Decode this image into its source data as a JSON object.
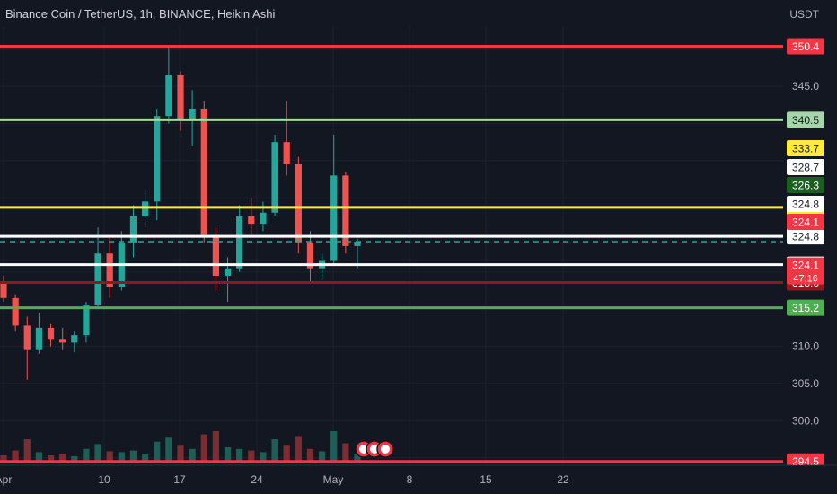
{
  "title": "Binance Coin / TetherUS, 1h, BINANCE, Heikin Ashi",
  "currency_label": "USDT",
  "colors": {
    "background": "#131722",
    "grid": "#1e222d",
    "text": "#b2b5be",
    "up": "#26a69a",
    "down": "#ef5350",
    "volume_up": "#1f5e57",
    "volume_down": "#7a2e31"
  },
  "chart_data": {
    "type": "candlestick",
    "ylim": [
      293.5,
      353.0
    ],
    "y_ticks": [
      {
        "value": 345.0,
        "label": "345.0"
      },
      {
        "value": 310.0,
        "label": "310.0"
      },
      {
        "value": 305.0,
        "label": "305.0"
      },
      {
        "value": 300.0,
        "label": "300.0"
      }
    ],
    "x_ticks": [
      "Apr",
      "10",
      "17",
      "24",
      "May",
      "8",
      "15",
      "22"
    ],
    "horizontal_lines": [
      {
        "value": 350.4,
        "color": "#f23645",
        "label": "350.4",
        "text_color": "#ffffff"
      },
      {
        "value": 340.5,
        "color": "#a5d6a7",
        "label": "340.5",
        "text_color": "#131722"
      },
      {
        "value": 328.7,
        "color": "#ffeb3b",
        "label": "328.7",
        "text_color": "#131722"
      },
      {
        "value": 324.8,
        "color": "#ffffff",
        "label": "324.8",
        "text_color": "#131722"
      },
      {
        "value": 321.0,
        "color": "#ffffff",
        "label": "324.1",
        "text_color": "#ffffff"
      },
      {
        "value": 318.6,
        "color": "#8b1a1f",
        "label": "318.6",
        "text_color": "#ffffff"
      },
      {
        "value": 315.2,
        "color": "#4caf50",
        "label": "315.2",
        "text_color": "#ffffff"
      },
      {
        "value": 294.5,
        "color": "#f23645",
        "label": "294.5",
        "text_color": "#ffffff"
      }
    ],
    "price_badges": [
      {
        "value": 333.7,
        "label": "333.7",
        "bg": "#ffeb3b",
        "fg": "#131722"
      },
      {
        "value": 328.7,
        "label": "328.7",
        "bg": "#ffffff",
        "fg": "#131722"
      },
      {
        "value": 326.3,
        "label": "326.3",
        "bg": "#1b5e20",
        "fg": "#ffffff"
      },
      {
        "value": 324.8,
        "label": "324.8",
        "bg": "#ffffff",
        "fg": "#131722"
      },
      {
        "value": 324.1,
        "label": "324.1",
        "bg": "#f23645",
        "fg": "#ffffff"
      },
      {
        "value": 321.0,
        "label": "324.1",
        "bg": "#f23645",
        "fg": "#ffffff"
      }
    ],
    "countdown": "47:16",
    "partial_tick": "320.0",
    "dashed_line_value": 324.1,
    "dashed_line_color": "#26a69a",
    "candles": [
      {
        "date": "Apr 3",
        "open": 318.5,
        "high": 319.5,
        "low": 316.0,
        "close": 316.5
      },
      {
        "date": "Apr 4",
        "open": 316.5,
        "high": 317.0,
        "low": 312.0,
        "close": 312.8
      },
      {
        "date": "Apr 5",
        "open": 312.8,
        "high": 314.0,
        "low": 305.5,
        "close": 309.5
      },
      {
        "date": "Apr 6",
        "open": 309.5,
        "high": 314.5,
        "low": 309.0,
        "close": 312.5
      },
      {
        "date": "Apr 7",
        "open": 312.5,
        "high": 313.0,
        "low": 310.0,
        "close": 311.0
      },
      {
        "date": "Apr 8",
        "open": 311.0,
        "high": 312.5,
        "low": 309.5,
        "close": 310.5
      },
      {
        "date": "Apr 9",
        "open": 310.5,
        "high": 312.0,
        "low": 309.2,
        "close": 311.5
      },
      {
        "date": "Apr 10",
        "open": 311.5,
        "high": 316.0,
        "low": 310.5,
        "close": 315.5
      },
      {
        "date": "Apr 11",
        "open": 315.5,
        "high": 326.0,
        "low": 315.0,
        "close": 322.5
      },
      {
        "date": "Apr 12",
        "open": 322.5,
        "high": 325.0,
        "low": 316.5,
        "close": 318.0
      },
      {
        "date": "Apr 13",
        "open": 318.0,
        "high": 325.5,
        "low": 317.5,
        "close": 324.0
      },
      {
        "date": "Apr 14",
        "open": 324.0,
        "high": 329.0,
        "low": 322.0,
        "close": 327.5
      },
      {
        "date": "Apr 15",
        "open": 327.5,
        "high": 331.0,
        "low": 326.0,
        "close": 329.5
      },
      {
        "date": "Apr 16",
        "open": 329.5,
        "high": 342.0,
        "low": 327.0,
        "close": 341.0
      },
      {
        "date": "Apr 17",
        "open": 341.0,
        "high": 350.5,
        "low": 340.0,
        "close": 346.5
      },
      {
        "date": "Apr 18",
        "open": 346.5,
        "high": 347.0,
        "low": 339.0,
        "close": 340.5
      },
      {
        "date": "Apr 19",
        "open": 340.5,
        "high": 344.5,
        "low": 337.0,
        "close": 342.0
      },
      {
        "date": "Apr 20",
        "open": 342.0,
        "high": 343.0,
        "low": 324.0,
        "close": 325.0
      },
      {
        "date": "Apr 21",
        "open": 325.0,
        "high": 326.0,
        "low": 317.5,
        "close": 319.5
      },
      {
        "date": "Apr 22",
        "open": 319.5,
        "high": 322.0,
        "low": 316.0,
        "close": 320.5
      },
      {
        "date": "Apr 23",
        "open": 320.5,
        "high": 329.0,
        "low": 320.0,
        "close": 327.5
      },
      {
        "date": "Apr 24",
        "open": 327.5,
        "high": 330.0,
        "low": 325.0,
        "close": 326.5
      },
      {
        "date": "Apr 25",
        "open": 326.5,
        "high": 329.5,
        "low": 325.5,
        "close": 328.0
      },
      {
        "date": "Apr 26",
        "open": 328.0,
        "high": 338.5,
        "low": 327.5,
        "close": 337.5
      },
      {
        "date": "Apr 27",
        "open": 337.5,
        "high": 343.0,
        "low": 333.0,
        "close": 334.5
      },
      {
        "date": "Apr 28",
        "open": 334.5,
        "high": 335.5,
        "low": 322.5,
        "close": 324.0
      },
      {
        "date": "Apr 29",
        "open": 324.0,
        "high": 325.5,
        "low": 318.5,
        "close": 320.5
      },
      {
        "date": "Apr 30",
        "open": 320.5,
        "high": 322.5,
        "low": 319.0,
        "close": 321.5
      },
      {
        "date": "May 1",
        "open": 321.5,
        "high": 338.5,
        "low": 321.0,
        "close": 333.0
      },
      {
        "date": "May 2",
        "open": 333.0,
        "high": 333.5,
        "low": 322.5,
        "close": 323.5
      },
      {
        "date": "May 3",
        "open": 323.5,
        "high": 324.5,
        "low": 320.5,
        "close": 324.1
      }
    ],
    "volume": [
      0.1,
      0.16,
      0.3,
      0.14,
      0.1,
      0.12,
      0.09,
      0.18,
      0.24,
      0.15,
      0.14,
      0.16,
      0.12,
      0.27,
      0.32,
      0.22,
      0.18,
      0.36,
      0.4,
      0.2,
      0.18,
      0.16,
      0.14,
      0.3,
      0.22,
      0.34,
      0.18,
      0.15,
      0.4,
      0.25,
      0.12
    ]
  }
}
